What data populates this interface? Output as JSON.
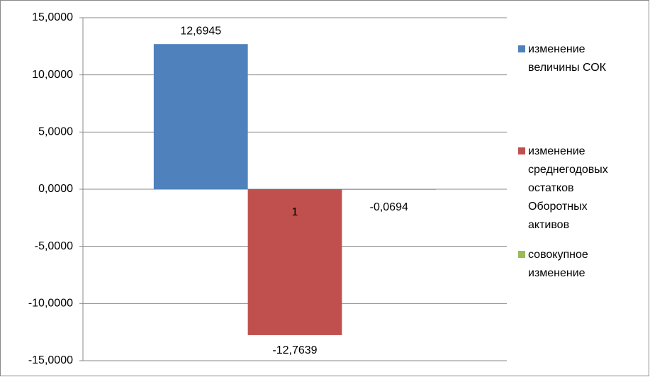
{
  "chart_data": {
    "type": "bar",
    "categories": [
      "1"
    ],
    "series": [
      {
        "name": "изменение величины СОК",
        "color": "#4f81bd",
        "values": [
          12.6945
        ],
        "value_labels": [
          "12,6945"
        ]
      },
      {
        "name": "изменение среднегодовых остатков Оборотных активов",
        "color": "#c0504d",
        "values": [
          -12.7639
        ],
        "value_labels": [
          "-12,7639"
        ]
      },
      {
        "name": "совокупное изменение",
        "color": "#9bbb59",
        "values": [
          -0.0694
        ],
        "value_labels": [
          "-0,0694"
        ]
      }
    ],
    "ylim": [
      -15,
      15
    ],
    "yticks": [
      {
        "value": -15,
        "label": "-15,0000"
      },
      {
        "value": -10,
        "label": "-10,0000"
      },
      {
        "value": -5,
        "label": "-5,0000"
      },
      {
        "value": 0,
        "label": "0,0000"
      },
      {
        "value": 5,
        "label": "5,0000"
      },
      {
        "value": 10,
        "label": "10,0000"
      },
      {
        "value": 15,
        "label": "15,0000"
      }
    ],
    "grid": true,
    "legend": "right"
  }
}
